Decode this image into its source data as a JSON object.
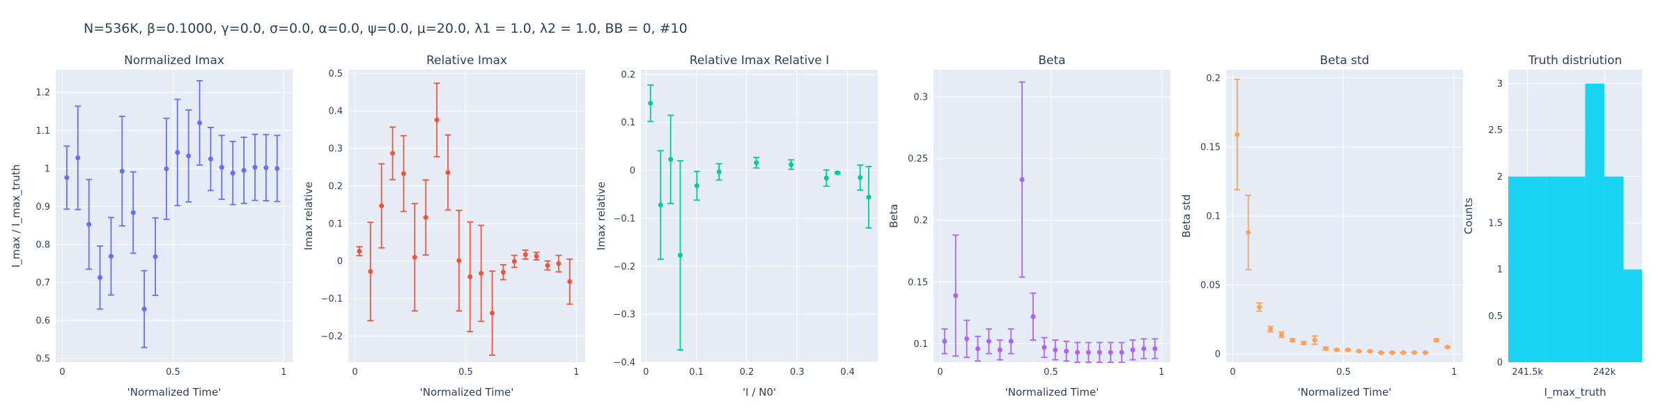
{
  "figure": {
    "title": "N=536K, β=0.1000, γ=0.0, σ=0.0,  α=0.0, ψ=0.0, μ=20.0, λ1 = 1.0, λ2 = 1.0, BB = 0, #10"
  },
  "colors": {
    "plot_bg": "#E5ECF6",
    "grid": "#ffffff",
    "text": "#2a3f5f",
    "series": [
      "#636EFA",
      "#EF553B",
      "#00CC96",
      "#AB63FA",
      "#FFA15A",
      "#19D3F3"
    ]
  },
  "chart_data": [
    {
      "type": "scatter",
      "title": "Normalized Imax",
      "xlabel": "'Normalized Time'",
      "ylabel": "I_max / I_max_truth",
      "color": "#636EFA",
      "xlim": [
        -0.03,
        1.04
      ],
      "ylim": [
        0.49,
        1.26
      ],
      "xticks": [
        {
          "v": 0,
          "label": "0"
        },
        {
          "v": 0.5,
          "label": "0.5"
        },
        {
          "v": 1,
          "label": "1"
        }
      ],
      "yticks": [
        {
          "v": 0.5,
          "label": "0.5"
        },
        {
          "v": 0.6,
          "label": "0.6"
        },
        {
          "v": 0.7,
          "label": "0.7"
        },
        {
          "v": 0.8,
          "label": "0.8"
        },
        {
          "v": 0.9,
          "label": "0.9"
        },
        {
          "v": 1.0,
          "label": "1"
        },
        {
          "v": 1.1,
          "label": "1.1"
        },
        {
          "v": 1.2,
          "label": "1.2"
        }
      ],
      "x": [
        0.02,
        0.07,
        0.12,
        0.17,
        0.22,
        0.27,
        0.32,
        0.37,
        0.42,
        0.47,
        0.52,
        0.57,
        0.62,
        0.67,
        0.72,
        0.77,
        0.82,
        0.87,
        0.92,
        0.97
      ],
      "y": [
        0.976,
        1.028,
        0.853,
        0.713,
        0.769,
        0.993,
        0.884,
        0.63,
        0.768,
        0.999,
        1.042,
        1.033,
        1.12,
        1.025,
        1.003,
        0.988,
        0.995,
        1.003,
        1.002,
        1.0
      ],
      "err": [
        0.083,
        0.136,
        0.118,
        0.083,
        0.102,
        0.144,
        0.107,
        0.101,
        0.102,
        0.133,
        0.14,
        0.121,
        0.111,
        0.083,
        0.084,
        0.083,
        0.087,
        0.087,
        0.087,
        0.087
      ]
    },
    {
      "type": "scatter",
      "title": "Relative Imax",
      "xlabel": "'Normalized Time'",
      "ylabel": "Imax relative",
      "color": "#EF553B",
      "xlim": [
        -0.03,
        1.04
      ],
      "ylim": [
        -0.27,
        0.51
      ],
      "xticks": [
        {
          "v": 0,
          "label": "0"
        },
        {
          "v": 0.5,
          "label": "0.5"
        },
        {
          "v": 1,
          "label": "1"
        }
      ],
      "yticks": [
        {
          "v": -0.2,
          "label": "−0.2"
        },
        {
          "v": -0.1,
          "label": "−0.1"
        },
        {
          "v": 0,
          "label": "0"
        },
        {
          "v": 0.1,
          "label": "0.1"
        },
        {
          "v": 0.2,
          "label": "0.2"
        },
        {
          "v": 0.3,
          "label": "0.3"
        },
        {
          "v": 0.4,
          "label": "0.4"
        },
        {
          "v": 0.5,
          "label": "0.5"
        }
      ],
      "x": [
        0.02,
        0.07,
        0.12,
        0.17,
        0.22,
        0.27,
        0.32,
        0.37,
        0.42,
        0.47,
        0.52,
        0.57,
        0.62,
        0.67,
        0.72,
        0.77,
        0.82,
        0.87,
        0.92,
        0.97
      ],
      "y": [
        0.026,
        -0.028,
        0.147,
        0.287,
        0.233,
        0.01,
        0.116,
        0.376,
        0.236,
        0.001,
        -0.042,
        -0.033,
        -0.139,
        -0.03,
        -0.001,
        0.017,
        0.013,
        -0.012,
        -0.007,
        -0.055
      ],
      "err": [
        0.012,
        0.131,
        0.112,
        0.07,
        0.101,
        0.143,
        0.1,
        0.098,
        0.1,
        0.134,
        0.146,
        0.128,
        0.112,
        0.02,
        0.016,
        0.012,
        0.01,
        0.012,
        0.022,
        0.06
      ]
    },
    {
      "type": "scatter",
      "title": "Relative Imax Relative I",
      "xlabel": "'I / N0'",
      "ylabel": "Imax relative",
      "color": "#00CC96",
      "xlim": [
        -0.01,
        0.46
      ],
      "ylim": [
        -0.4,
        0.21
      ],
      "xticks": [
        {
          "v": 0,
          "label": "0"
        },
        {
          "v": 0.1,
          "label": "0.1"
        },
        {
          "v": 0.2,
          "label": "0.2"
        },
        {
          "v": 0.3,
          "label": "0.3"
        },
        {
          "v": 0.4,
          "label": "0.4"
        }
      ],
      "yticks": [
        {
          "v": -0.4,
          "label": "−0.4"
        },
        {
          "v": -0.3,
          "label": "−0.3"
        },
        {
          "v": -0.2,
          "label": "−0.2"
        },
        {
          "v": -0.1,
          "label": "−0.1"
        },
        {
          "v": 0,
          "label": "0"
        },
        {
          "v": 0.1,
          "label": "0.1"
        },
        {
          "v": 0.2,
          "label": "0.2"
        }
      ],
      "x": [
        0.009,
        0.029,
        0.049,
        0.068,
        0.101,
        0.145,
        0.219,
        0.288,
        0.358,
        0.38,
        0.425,
        0.442
      ],
      "y": [
        0.14,
        -0.072,
        0.023,
        -0.177,
        -0.032,
        -0.003,
        0.016,
        0.012,
        -0.016,
        -0.005,
        -0.015,
        -0.056
      ],
      "err": [
        0.038,
        0.113,
        0.092,
        0.197,
        0.03,
        0.017,
        0.011,
        0.01,
        0.017,
        0.002,
        0.026,
        0.064
      ]
    },
    {
      "type": "scatter",
      "title": "Beta",
      "xlabel": "'Normalized Time'",
      "ylabel": "Beta",
      "color": "#AB63FA",
      "xlim": [
        -0.03,
        1.04
      ],
      "ylim": [
        0.085,
        0.322
      ],
      "xticks": [
        {
          "v": 0,
          "label": "0"
        },
        {
          "v": 0.5,
          "label": "0.5"
        },
        {
          "v": 1,
          "label": "1"
        }
      ],
      "yticks": [
        {
          "v": 0.1,
          "label": "0.1"
        },
        {
          "v": 0.15,
          "label": "0.15"
        },
        {
          "v": 0.2,
          "label": "0.2"
        },
        {
          "v": 0.25,
          "label": "0.25"
        },
        {
          "v": 0.3,
          "label": "0.3"
        }
      ],
      "x": [
        0.02,
        0.07,
        0.12,
        0.17,
        0.22,
        0.27,
        0.32,
        0.37,
        0.42,
        0.47,
        0.52,
        0.57,
        0.62,
        0.67,
        0.72,
        0.77,
        0.82,
        0.87,
        0.92,
        0.97
      ],
      "y": [
        0.102,
        0.139,
        0.104,
        0.096,
        0.102,
        0.095,
        0.102,
        0.233,
        0.122,
        0.097,
        0.095,
        0.094,
        0.093,
        0.093,
        0.093,
        0.093,
        0.093,
        0.095,
        0.096,
        0.096
      ],
      "err": [
        0.01,
        0.049,
        0.015,
        0.01,
        0.01,
        0.008,
        0.01,
        0.079,
        0.019,
        0.008,
        0.008,
        0.008,
        0.008,
        0.008,
        0.008,
        0.008,
        0.008,
        0.008,
        0.008,
        0.008
      ]
    },
    {
      "type": "scatter",
      "title": "Beta std",
      "xlabel": "'Normalized Time'",
      "ylabel": "Beta std",
      "color": "#FFA15A",
      "xlim": [
        -0.03,
        1.04
      ],
      "ylim": [
        -0.006,
        0.206
      ],
      "xticks": [
        {
          "v": 0,
          "label": "0"
        },
        {
          "v": 0.5,
          "label": "0.5"
        },
        {
          "v": 1,
          "label": "1"
        }
      ],
      "yticks": [
        {
          "v": 0,
          "label": "0"
        },
        {
          "v": 0.05,
          "label": "0.05"
        },
        {
          "v": 0.1,
          "label": "0.1"
        },
        {
          "v": 0.15,
          "label": "0.15"
        },
        {
          "v": 0.2,
          "label": "0.2"
        }
      ],
      "x": [
        0.02,
        0.07,
        0.12,
        0.17,
        0.22,
        0.27,
        0.32,
        0.37,
        0.42,
        0.47,
        0.52,
        0.57,
        0.62,
        0.67,
        0.72,
        0.77,
        0.82,
        0.87,
        0.92,
        0.97
      ],
      "y": [
        0.159,
        0.088,
        0.034,
        0.018,
        0.014,
        0.01,
        0.008,
        0.01,
        0.004,
        0.003,
        0.003,
        0.002,
        0.002,
        0.001,
        0.001,
        0.001,
        0.001,
        0.001,
        0.01,
        0.005
      ],
      "err": [
        0.04,
        0.027,
        0.003,
        0.002,
        0.002,
        0.001,
        0.001,
        0.003,
        0.001,
        0.0005,
        0.0005,
        0.0003,
        0.0003,
        0.0003,
        0.0003,
        0.0003,
        0.0003,
        0.0003,
        0.0008,
        0.0005
      ]
    },
    {
      "type": "bar",
      "title": "Truth distriution",
      "xlabel": "I_max_truth",
      "ylabel": "Counts",
      "color": "#19D3F3",
      "xlim": [
        241375,
        242245
      ],
      "ylim": [
        0,
        3.15
      ],
      "xticks": [
        {
          "v": 241500,
          "label": "241.5k"
        },
        {
          "v": 242000,
          "label": "242k"
        }
      ],
      "yticks": [
        {
          "v": 0,
          "label": "0"
        },
        {
          "v": 0.5,
          "label": "0.5"
        },
        {
          "v": 1,
          "label": "1"
        },
        {
          "v": 1.5,
          "label": "1.5"
        },
        {
          "v": 2,
          "label": "2"
        },
        {
          "v": 2.5,
          "label": "2.5"
        },
        {
          "v": 3,
          "label": "3"
        }
      ],
      "bins": [
        {
          "x0": 241375,
          "x1": 241625,
          "count": 2
        },
        {
          "x0": 241625,
          "x1": 241875,
          "count": 2
        },
        {
          "x0": 241875,
          "x1": 242000,
          "count": 3
        },
        {
          "x0": 242000,
          "x1": 242125,
          "count": 2
        },
        {
          "x0": 242125,
          "x1": 242245,
          "count": 1
        }
      ]
    }
  ]
}
